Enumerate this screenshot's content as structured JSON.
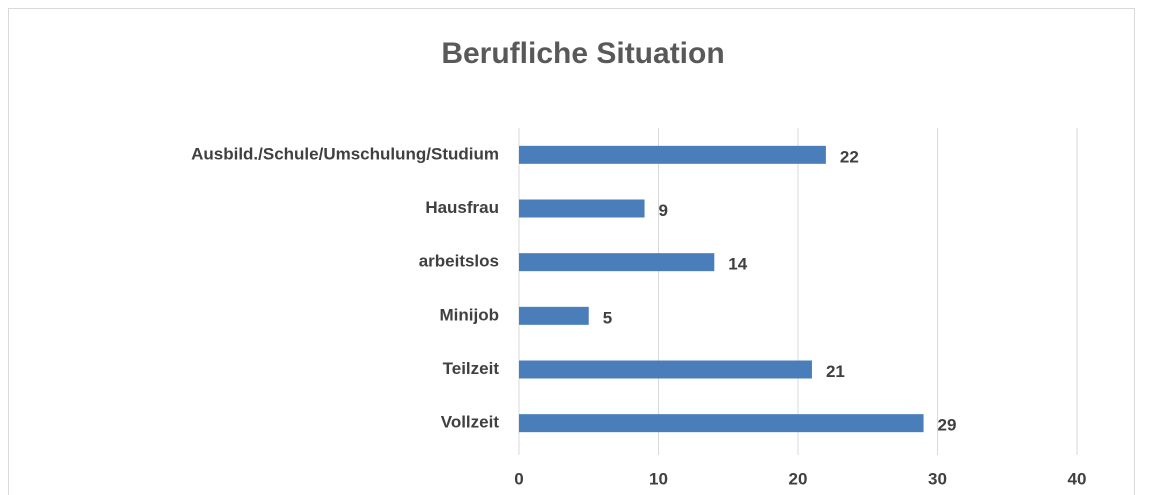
{
  "chart_data": {
    "type": "bar",
    "orientation": "horizontal",
    "title": "Berufliche Situation",
    "categories": [
      "Ausbild./Schule/Umschulung/Studium",
      "Hausfrau",
      "arbeitslos",
      "Minijob",
      "Teilzeit",
      "Vollzeit"
    ],
    "values": [
      22,
      9,
      14,
      5,
      21,
      29
    ],
    "color": "#4a7ebb",
    "xlim": [
      0,
      40
    ],
    "xticks": [
      0,
      10,
      20,
      30,
      40
    ],
    "grid": true
  }
}
